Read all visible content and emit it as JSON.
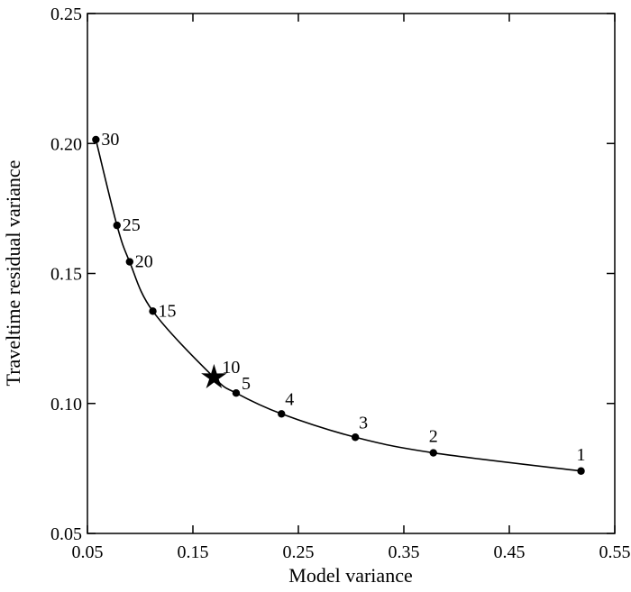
{
  "chart_data": {
    "type": "line",
    "title": "",
    "xlabel": "Model variance",
    "ylabel": "Traveltime residual variance",
    "xlim": [
      0.05,
      0.55
    ],
    "ylim": [
      0.05,
      0.25
    ],
    "xticks": [
      0.05,
      0.15,
      0.25,
      0.35,
      0.45,
      0.55
    ],
    "xtick_labels": [
      "0.05",
      "0.15",
      "0.25",
      "0.35",
      "0.45",
      "0.55"
    ],
    "yticks": [
      0.05,
      0.1,
      0.15,
      0.2,
      0.25
    ],
    "ytick_labels": [
      "0.05",
      "0.10",
      "0.15",
      "0.20",
      "0.25"
    ],
    "grid": false,
    "line_color": "#000000",
    "series": [
      {
        "points": [
          {
            "label": "30",
            "x": 0.058,
            "y": 0.2015
          },
          {
            "label": "25",
            "x": 0.078,
            "y": 0.1685
          },
          {
            "label": "20",
            "x": 0.09,
            "y": 0.1545
          },
          {
            "label": "15",
            "x": 0.112,
            "y": 0.1355
          },
          {
            "label": "10",
            "x": 0.17,
            "y": 0.11,
            "marker": "star"
          },
          {
            "label": "5",
            "x": 0.191,
            "y": 0.104
          },
          {
            "label": "4",
            "x": 0.234,
            "y": 0.096
          },
          {
            "label": "3",
            "x": 0.304,
            "y": 0.087
          },
          {
            "label": "2",
            "x": 0.378,
            "y": 0.081
          },
          {
            "label": "1",
            "x": 0.518,
            "y": 0.074
          }
        ]
      }
    ]
  }
}
